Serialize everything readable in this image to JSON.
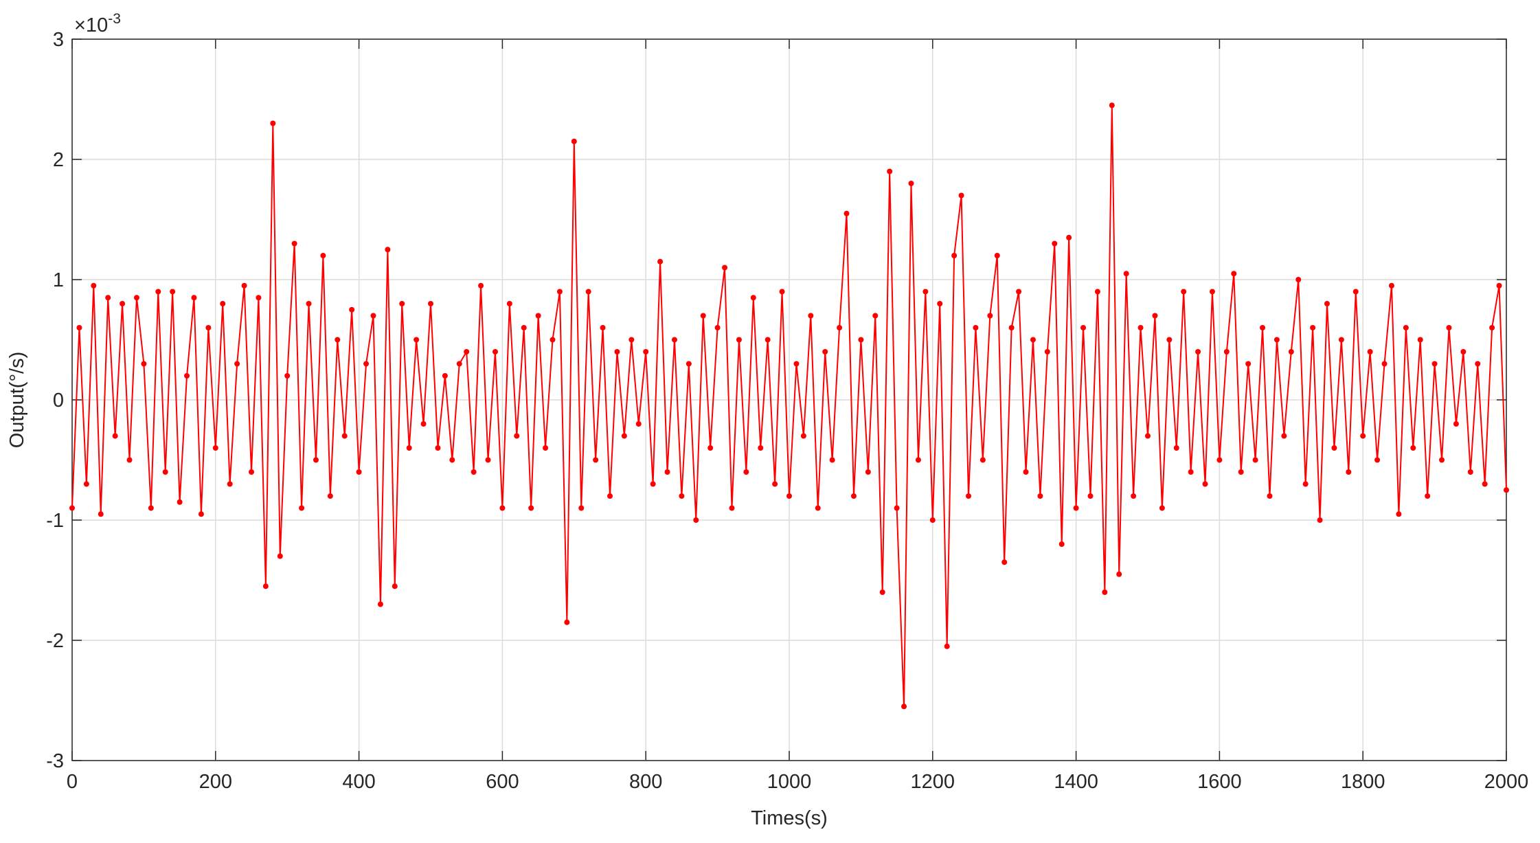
{
  "chart_data": {
    "type": "line",
    "x_label": "Times(s)",
    "y_label": "Output(°/s)",
    "y_exponent_base": "×10",
    "y_exponent_power": "-3",
    "xlim": [
      0,
      2000
    ],
    "xticks": [
      0,
      200,
      400,
      600,
      800,
      1000,
      1200,
      1400,
      1600,
      1800,
      2000
    ],
    "ylim": [
      -3,
      3
    ],
    "yticks": [
      -3,
      -2,
      -1,
      0,
      1,
      2,
      3
    ],
    "grid": true,
    "x": [
      0,
      10,
      20,
      30,
      40,
      50,
      60,
      70,
      80,
      90,
      100,
      110,
      120,
      130,
      140,
      150,
      160,
      170,
      180,
      190,
      200,
      210,
      220,
      230,
      240,
      250,
      260,
      270,
      280,
      290,
      300,
      310,
      320,
      330,
      340,
      350,
      360,
      370,
      380,
      390,
      400,
      410,
      420,
      430,
      440,
      450,
      460,
      470,
      480,
      490,
      500,
      510,
      520,
      530,
      540,
      550,
      560,
      570,
      580,
      590,
      600,
      610,
      620,
      630,
      640,
      650,
      660,
      670,
      680,
      690,
      700,
      710,
      720,
      730,
      740,
      750,
      760,
      770,
      780,
      790,
      800,
      810,
      820,
      830,
      840,
      850,
      860,
      870,
      880,
      890,
      900,
      910,
      920,
      930,
      940,
      950,
      960,
      970,
      980,
      990,
      1000,
      1010,
      1020,
      1030,
      1040,
      1050,
      1060,
      1070,
      1080,
      1090,
      1100,
      1110,
      1120,
      1130,
      1140,
      1150,
      1160,
      1170,
      1180,
      1190,
      1200,
      1210,
      1220,
      1230,
      1240,
      1250,
      1260,
      1270,
      1280,
      1290,
      1300,
      1310,
      1320,
      1330,
      1340,
      1350,
      1360,
      1370,
      1380,
      1390,
      1400,
      1410,
      1420,
      1430,
      1440,
      1450,
      1460,
      1470,
      1480,
      1490,
      1500,
      1510,
      1520,
      1530,
      1540,
      1550,
      1560,
      1570,
      1580,
      1590,
      1600,
      1610,
      1620,
      1630,
      1640,
      1650,
      1660,
      1670,
      1680,
      1690,
      1700,
      1710,
      1720,
      1730,
      1740,
      1750,
      1760,
      1770,
      1780,
      1790,
      1800,
      1810,
      1820,
      1830,
      1840,
      1850,
      1860,
      1870,
      1880,
      1890,
      1900,
      1910,
      1920,
      1930,
      1940,
      1950,
      1960,
      1970,
      1980,
      1990,
      2000
    ],
    "series": [
      {
        "color": "#ff0000",
        "values": [
          -0.9,
          0.6,
          -0.7,
          0.95,
          -0.95,
          0.85,
          -0.3,
          0.8,
          -0.5,
          0.85,
          0.3,
          -0.9,
          0.9,
          -0.6,
          0.9,
          -0.85,
          0.2,
          0.85,
          -0.95,
          0.6,
          -0.4,
          0.8,
          -0.7,
          0.3,
          0.95,
          -0.6,
          0.85,
          -1.55,
          2.3,
          -1.3,
          0.2,
          1.3,
          -0.9,
          0.8,
          -0.5,
          1.2,
          -0.8,
          0.5,
          -0.3,
          0.75,
          -0.6,
          0.3,
          0.7,
          -1.7,
          1.25,
          -1.55,
          0.8,
          -0.4,
          0.5,
          -0.2,
          0.8,
          -0.4,
          0.2,
          -0.5,
          0.3,
          0.4,
          -0.6,
          0.95,
          -0.5,
          0.4,
          -0.9,
          0.8,
          -0.3,
          0.6,
          -0.9,
          0.7,
          -0.4,
          0.5,
          0.9,
          -1.85,
          2.15,
          -0.9,
          0.9,
          -0.5,
          0.6,
          -0.8,
          0.4,
          -0.3,
          0.5,
          -0.2,
          0.4,
          -0.7,
          1.15,
          -0.6,
          0.5,
          -0.8,
          0.3,
          -1.0,
          0.7,
          -0.4,
          0.6,
          1.1,
          -0.9,
          0.5,
          -0.6,
          0.85,
          -0.4,
          0.5,
          -0.7,
          0.9,
          -0.8,
          0.3,
          -0.3,
          0.7,
          -0.9,
          0.4,
          -0.5,
          0.6,
          1.55,
          -0.8,
          0.5,
          -0.6,
          0.7,
          -1.6,
          1.9,
          -0.9,
          -2.55,
          1.8,
          -0.5,
          0.9,
          -1.0,
          0.8,
          -2.05,
          1.2,
          1.7,
          -0.8,
          0.6,
          -0.5,
          0.7,
          1.2,
          -1.35,
          0.6,
          0.9,
          -0.6,
          0.5,
          -0.8,
          0.4,
          1.3,
          -1.2,
          1.35,
          -0.9,
          0.6,
          -0.8,
          0.9,
          -1.6,
          2.45,
          -1.45,
          1.05,
          -0.8,
          0.6,
          -0.3,
          0.7,
          -0.9,
          0.5,
          -0.4,
          0.9,
          -0.6,
          0.4,
          -0.7,
          0.9,
          -0.5,
          0.4,
          1.05,
          -0.6,
          0.3,
          -0.5,
          0.6,
          -0.8,
          0.5,
          -0.3,
          0.4,
          1.0,
          -0.7,
          0.6,
          -1.0,
          0.8,
          -0.4,
          0.5,
          -0.6,
          0.9,
          -0.3,
          0.4,
          -0.5,
          0.3,
          0.95,
          -0.95,
          0.6,
          -0.4,
          0.5,
          -0.8,
          0.3,
          -0.5,
          0.6,
          -0.2,
          0.4,
          -0.6,
          0.3,
          -0.7,
          0.6,
          0.95,
          -0.75
        ]
      }
    ]
  }
}
